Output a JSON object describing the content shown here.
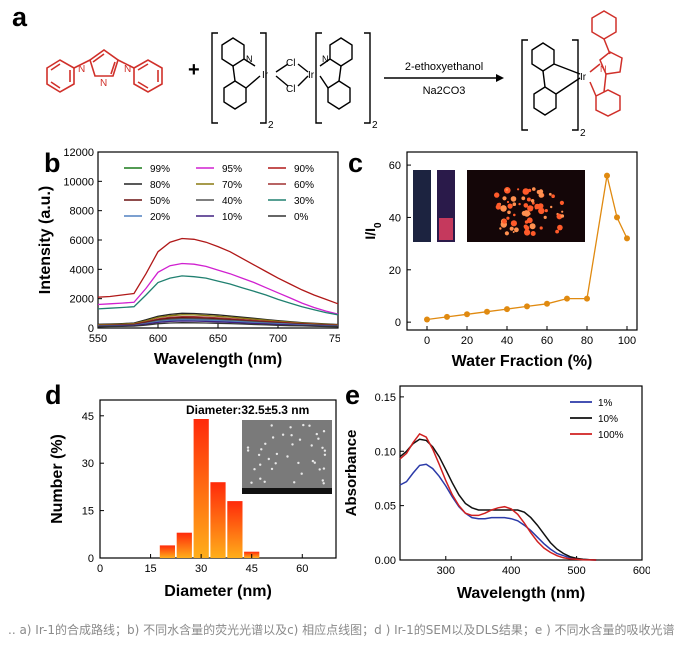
{
  "panels": {
    "a": {
      "label": "a",
      "plus": "+",
      "arrow_top": "2-ethoxyethanol",
      "arrow_bottom": "Na2CO3",
      "cl_top": "Cl",
      "cl_bottom": "Cl",
      "ir": "Ir",
      "n": "N",
      "subscript_2": "2"
    },
    "b": {
      "label": "b"
    },
    "c": {
      "label": "c"
    },
    "d": {
      "label": "d",
      "annotation": "Diameter:32.5±5.3 nm"
    },
    "e": {
      "label": "e"
    }
  },
  "caption": ".. a) Ir-1的合成路线；b) 不同水含量的荧光光谱以及c) 相应点线图；d ) Ir-1的SEM以及DLS结果；e ) 不同水含量的吸收光谱",
  "chart_data": [
    {
      "id": "b",
      "type": "line",
      "xlabel": "Wavelength (nm)",
      "ylabel": "Intensity (a.u.)",
      "xlim": [
        550,
        750
      ],
      "ylim": [
        0,
        12000
      ],
      "xticks": [
        "550",
        "600",
        "650",
        "700",
        "750"
      ],
      "yticks": [
        "0",
        "2000",
        "4000",
        "6000",
        "8000",
        "10000",
        "12000"
      ],
      "x": [
        550,
        560,
        570,
        580,
        590,
        600,
        610,
        620,
        630,
        640,
        650,
        660,
        670,
        680,
        690,
        700,
        710,
        720,
        730,
        740,
        750
      ],
      "series": [
        {
          "name": "99%",
          "color": "#1a7a1a",
          "values": [
            200,
            220,
            240,
            270,
            330,
            420,
            500,
            540,
            550,
            530,
            500,
            460,
            410,
            360,
            310,
            270,
            230,
            200,
            170,
            150,
            130
          ]
        },
        {
          "name": "95%",
          "color": "#d020d0",
          "values": [
            1600,
            1650,
            1700,
            1750,
            2700,
            3800,
            4250,
            4400,
            4350,
            4200,
            3950,
            3700,
            3400,
            3100,
            2750,
            2400,
            2050,
            1700,
            1400,
            1150,
            950
          ]
        },
        {
          "name": "90%",
          "color": "#b01818",
          "values": [
            2100,
            2150,
            2250,
            2350,
            3700,
            5200,
            5850,
            6100,
            6050,
            5850,
            5550,
            5200,
            4750,
            4300,
            3850,
            3400,
            3000,
            2600,
            2250,
            1950,
            1650
          ]
        },
        {
          "name": "80%",
          "color": "#222222",
          "values": [
            250,
            270,
            300,
            340,
            560,
            800,
            930,
            1000,
            990,
            950,
            890,
            820,
            740,
            660,
            580,
            500,
            430,
            370,
            320,
            280,
            240
          ]
        },
        {
          "name": "70%",
          "color": "#8a7a10",
          "values": [
            220,
            240,
            260,
            300,
            500,
            720,
            840,
            900,
            890,
            850,
            800,
            740,
            670,
            600,
            530,
            460,
            400,
            340,
            290,
            250,
            220
          ]
        },
        {
          "name": "60%",
          "color": "#a03030",
          "values": [
            180,
            200,
            220,
            250,
            420,
            620,
            730,
            780,
            770,
            740,
            690,
            640,
            580,
            520,
            460,
            400,
            350,
            300,
            260,
            220,
            190
          ]
        },
        {
          "name": "50%",
          "color": "#6a1010",
          "values": [
            160,
            180,
            200,
            230,
            380,
            560,
            660,
            700,
            690,
            660,
            620,
            570,
            520,
            460,
            410,
            360,
            310,
            270,
            230,
            200,
            170
          ]
        },
        {
          "name": "40%",
          "color": "#555555",
          "values": [
            140,
            160,
            180,
            200,
            340,
            500,
            590,
            630,
            620,
            600,
            560,
            520,
            470,
            420,
            370,
            320,
            280,
            240,
            210,
            180,
            150
          ]
        },
        {
          "name": "30%",
          "color": "#208070",
          "values": [
            1300,
            1350,
            1400,
            1450,
            2250,
            3100,
            3400,
            3550,
            3500,
            3400,
            3200,
            3000,
            2750,
            2500,
            2250,
            1950,
            1700,
            1450,
            1250,
            1050,
            900
          ]
        },
        {
          "name": "20%",
          "color": "#5080c0",
          "values": [
            120,
            140,
            160,
            180,
            300,
            440,
            520,
            560,
            550,
            530,
            500,
            460,
            420,
            370,
            330,
            290,
            250,
            210,
            180,
            150,
            130
          ]
        },
        {
          "name": "10%",
          "color": "#402080",
          "values": [
            100,
            120,
            140,
            160,
            260,
            380,
            450,
            480,
            470,
            450,
            420,
            390,
            350,
            310,
            280,
            240,
            210,
            180,
            150,
            130,
            110
          ]
        },
        {
          "name": "0%",
          "color": "#333333",
          "values": [
            80,
            100,
            110,
            130,
            200,
            290,
            340,
            360,
            355,
            340,
            320,
            300,
            270,
            240,
            210,
            180,
            160,
            140,
            120,
            100,
            90
          ]
        }
      ]
    },
    {
      "id": "c",
      "type": "line",
      "xlabel": "Water Fraction (%)",
      "ylabel": "I/I0",
      "xlim": [
        -10,
        105
      ],
      "ylim": [
        -3,
        65
      ],
      "xticks": [
        "0",
        "20",
        "40",
        "60",
        "80",
        "100"
      ],
      "yticks": [
        "0",
        "20",
        "40",
        "60"
      ],
      "color": "#e08a10",
      "x": [
        0,
        10,
        20,
        30,
        40,
        50,
        60,
        70,
        80,
        90,
        95,
        100
      ],
      "values": [
        1,
        2,
        3,
        4,
        5,
        6,
        7,
        9,
        9,
        56,
        40,
        32
      ]
    },
    {
      "id": "d",
      "type": "bar",
      "xlabel": "Diameter (nm)",
      "ylabel": "Number (%)",
      "xlim": [
        0,
        70
      ],
      "ylim": [
        0,
        50
      ],
      "xticks": [
        "0",
        "15",
        "30",
        "45",
        "60"
      ],
      "yticks": [
        "0",
        "15",
        "30",
        "45"
      ],
      "x": [
        20,
        25,
        30,
        35,
        40,
        45
      ],
      "values": [
        4,
        8,
        44,
        24,
        18,
        2
      ]
    },
    {
      "id": "e",
      "type": "line",
      "xlabel": "Wavelength (nm)",
      "ylabel": "Absorbance",
      "xlim": [
        230,
        600
      ],
      "ylim": [
        0,
        0.16
      ],
      "xticks": [
        "300",
        "400",
        "500",
        "600"
      ],
      "yticks": [
        "0.00",
        "0.05",
        "0.10",
        "0.15"
      ],
      "x": [
        230,
        240,
        250,
        260,
        270,
        280,
        290,
        300,
        310,
        320,
        330,
        340,
        350,
        360,
        370,
        380,
        390,
        400,
        410,
        420,
        430,
        440,
        450,
        460,
        470,
        480,
        490,
        500,
        510,
        520,
        530
      ],
      "series": [
        {
          "name": "1%",
          "color": "#2b3aa8",
          "values": [
            0.069,
            0.072,
            0.08,
            0.087,
            0.088,
            0.084,
            0.077,
            0.068,
            0.058,
            0.049,
            0.043,
            0.039,
            0.038,
            0.038,
            0.039,
            0.039,
            0.039,
            0.038,
            0.036,
            0.032,
            0.027,
            0.021,
            0.015,
            0.01,
            0.006,
            0.004,
            0.002,
            0.001,
            0.0005,
            0.0002,
            0.0
          ]
        },
        {
          "name": "10%",
          "color": "#111111",
          "values": [
            0.095,
            0.1,
            0.107,
            0.111,
            0.11,
            0.104,
            0.095,
            0.083,
            0.071,
            0.06,
            0.052,
            0.048,
            0.046,
            0.046,
            0.046,
            0.046,
            0.046,
            0.046,
            0.046,
            0.044,
            0.039,
            0.032,
            0.024,
            0.016,
            0.01,
            0.006,
            0.003,
            0.0015,
            0.0007,
            0.0003,
            0.0
          ]
        },
        {
          "name": "100%",
          "color": "#d02020",
          "values": [
            0.093,
            0.098,
            0.108,
            0.116,
            0.113,
            0.102,
            0.088,
            0.073,
            0.06,
            0.05,
            0.043,
            0.041,
            0.041,
            0.043,
            0.046,
            0.048,
            0.049,
            0.047,
            0.042,
            0.034,
            0.025,
            0.017,
            0.011,
            0.007,
            0.004,
            0.002,
            0.001,
            0.0006,
            0.0003,
            0.0001,
            0.0
          ]
        }
      ]
    }
  ]
}
